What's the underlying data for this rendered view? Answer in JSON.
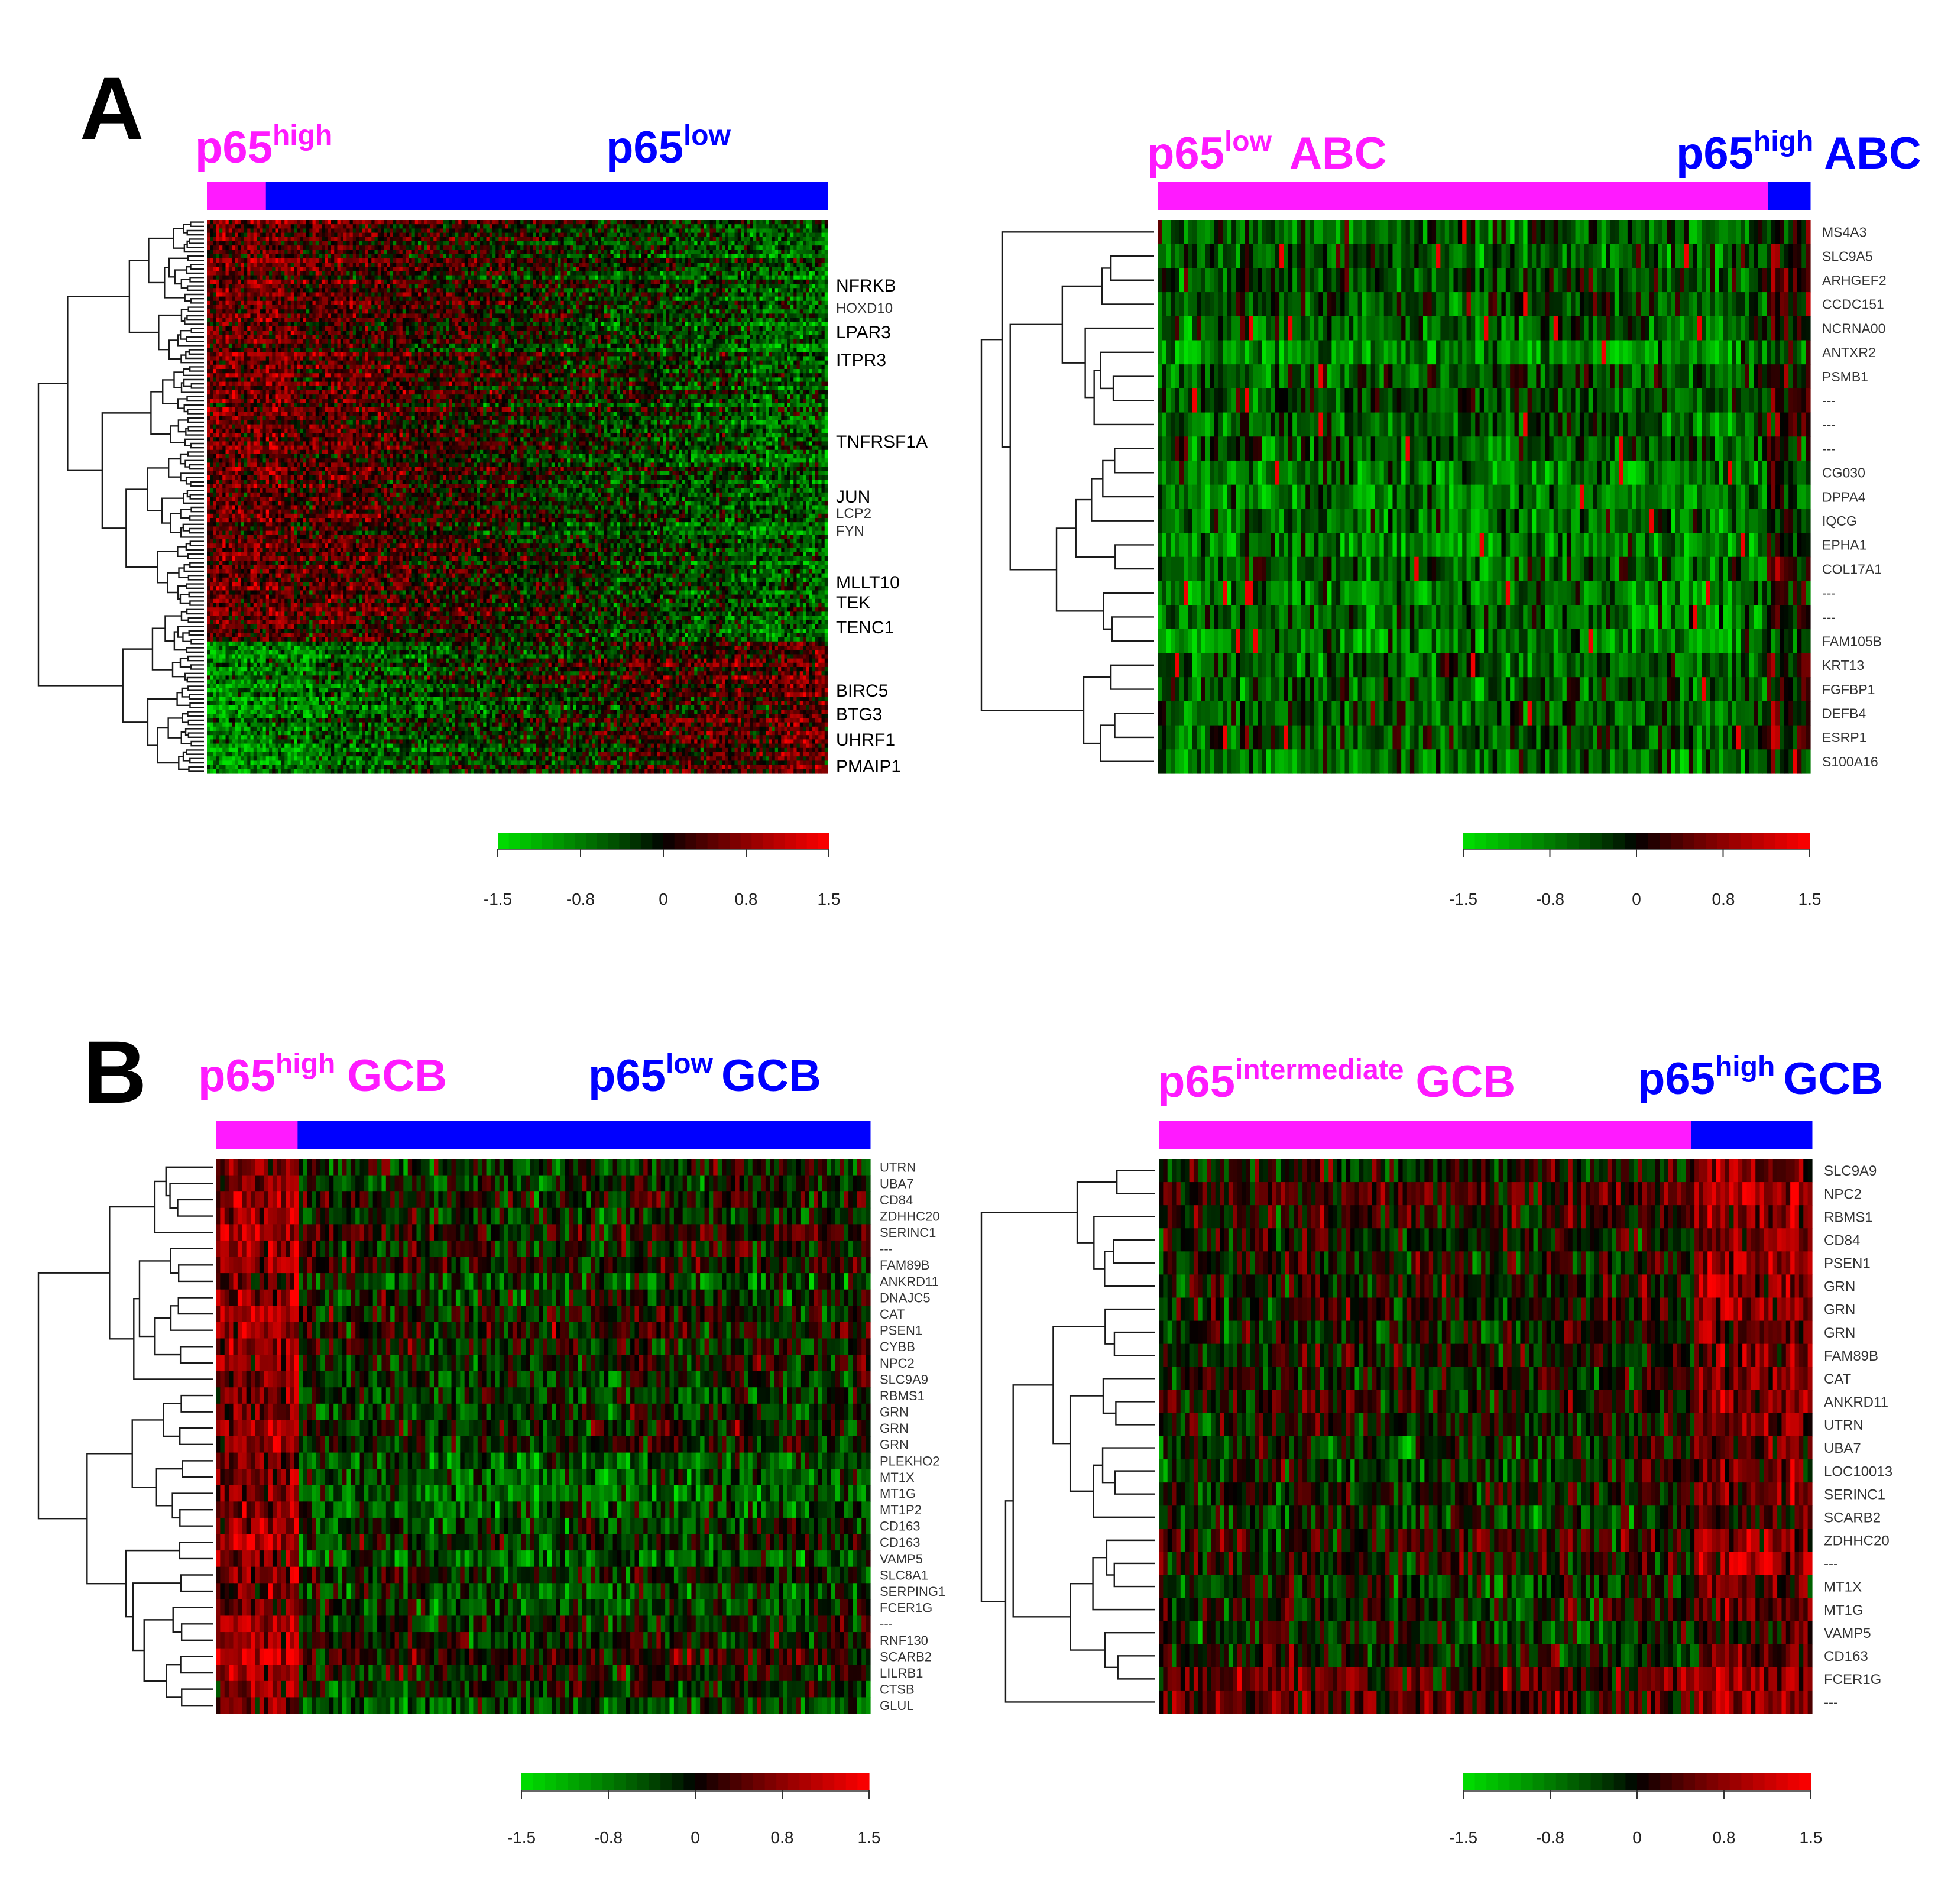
{
  "colors": {
    "magenta": "#ff1aff",
    "blue": "#0000ff",
    "low": "#00e000",
    "mid": "#000000",
    "high": "#ff0000"
  },
  "chart_data": [
    {
      "type": "heatmap",
      "panel_label": "A",
      "color_scale": {
        "min": -1.5,
        "max": 1.5,
        "ticks": [
          "-1.5",
          "-0.8",
          "0",
          "0.8",
          "1.5"
        ]
      },
      "groups": [
        {
          "base": "p65",
          "sup": "high",
          "suffix": "",
          "color": "#ff1aff",
          "fraction": 0.095
        },
        {
          "base": "p65",
          "sup": "low",
          "suffix": "",
          "color": "#0000ff",
          "fraction": 0.905
        }
      ],
      "row_labels": [
        "NFRKB",
        "HOXD10",
        "LPAR3",
        "ITPR3",
        "TNFRSF1A",
        "JUN",
        "LCP2",
        "FYN",
        "MLLT10",
        "TEK",
        "TENC1",
        "BIRC5",
        "BTG3",
        "UHRF1",
        "PMAIP1"
      ],
      "row_labels_small": [
        "HOXD10",
        "LCP2",
        "FYN"
      ],
      "n_rows": 130,
      "n_cols": 200,
      "n_displayed_rows": 130,
      "pattern": "high-left-top"
    },
    {
      "type": "heatmap",
      "panel_label": "",
      "color_scale": {
        "min": -1.5,
        "max": 1.5,
        "ticks": [
          "-1.5",
          "-0.8",
          "0",
          "0.8",
          "1.5"
        ]
      },
      "groups": [
        {
          "base": "p65",
          "sup": "low",
          "suffix": "ABC",
          "color": "#ff1aff",
          "fraction": 0.935
        },
        {
          "base": "p65",
          "sup": "high",
          "suffix": "ABC",
          "color": "#0000ff",
          "fraction": 0.065
        }
      ],
      "row_labels": [
        "MS4A3",
        "SLC9A5",
        "ARHGEF2",
        "CCDC151",
        "NCRNA00",
        "ANTXR2",
        "PSMB1",
        "---",
        "---",
        "---",
        "CG030",
        "DPPA4",
        "IQCG",
        "EPHA1",
        "COL17A1",
        "---",
        "---",
        "FAM105B",
        "KRT13",
        "FGFBP1",
        "DEFB4",
        "ESRP1",
        "S100A16"
      ],
      "n_rows": 23,
      "n_cols": 150,
      "pattern": "green-dominant"
    },
    {
      "type": "heatmap",
      "panel_label": "B",
      "color_scale": {
        "min": -1.5,
        "max": 1.5,
        "ticks": [
          "-1.5",
          "-0.8",
          "0",
          "0.8",
          "1.5"
        ]
      },
      "groups": [
        {
          "base": "p65",
          "sup": "high",
          "suffix": "GCB",
          "color": "#ff1aff",
          "fraction": 0.125
        },
        {
          "base": "p65",
          "sup": "low",
          "suffix": "GCB",
          "color": "#0000ff",
          "fraction": 0.875
        }
      ],
      "row_labels": [
        "UTRN",
        "UBA7",
        "CD84",
        "ZDHHC20",
        "SERINC1",
        "---",
        "FAM89B",
        "ANKRD11",
        "DNAJC5",
        "CAT",
        "PSEN1",
        "CYBB",
        "NPC2",
        "SLC9A9",
        "RBMS1",
        "GRN",
        "GRN",
        "GRN",
        "PLEKHO2",
        "MT1X",
        "MT1G",
        "MT1P2",
        "CD163",
        "CD163",
        "VAMP5",
        "SLC8A1",
        "SERPING1",
        "FCER1G",
        "---",
        "RNF130",
        "SCARB2",
        "LILRB1",
        "CTSB",
        "GLUL"
      ],
      "n_rows": 34,
      "n_cols": 150,
      "pattern": "high-left"
    },
    {
      "type": "heatmap",
      "panel_label": "",
      "color_scale": {
        "min": -1.5,
        "max": 1.5,
        "ticks": [
          "-1.5",
          "-0.8",
          "0",
          "0.8",
          "1.5"
        ]
      },
      "groups": [
        {
          "base": "p65",
          "sup": "intermediate",
          "suffix": "GCB",
          "color": "#ff1aff",
          "fraction": 0.815
        },
        {
          "base": "p65",
          "sup": "high",
          "suffix": "GCB",
          "color": "#0000ff",
          "fraction": 0.185
        }
      ],
      "row_labels": [
        "SLC9A9",
        "NPC2",
        "RBMS1",
        "CD84",
        "PSEN1",
        "GRN",
        "GRN",
        "GRN",
        "FAM89B",
        "CAT",
        "ANKRD11",
        "UTRN",
        "UBA7",
        "LOC10013",
        "SERINC1",
        "SCARB2",
        "ZDHHC20",
        "---",
        "MT1X",
        "MT1G",
        "VAMP5",
        "CD163",
        "FCER1G",
        "---"
      ],
      "n_rows": 24,
      "n_cols": 150,
      "pattern": "high-right"
    }
  ]
}
